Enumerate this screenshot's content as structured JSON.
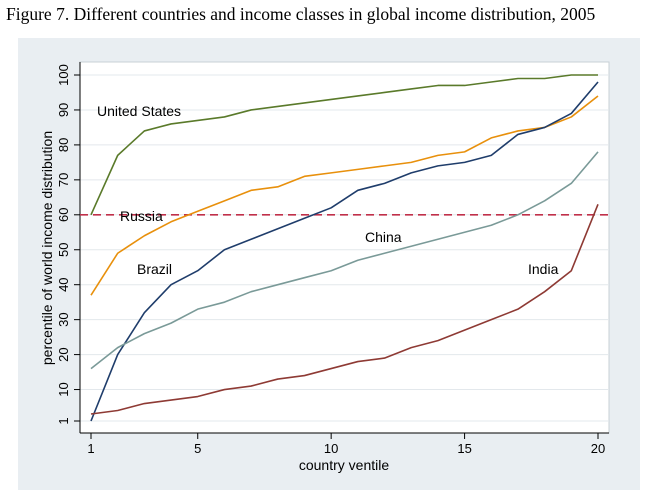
{
  "figure_title": "Figure 7. Different countries and income classes in global income distribution, 2005",
  "chart_data": {
    "type": "line",
    "title": "",
    "xlabel": "country ventile",
    "ylabel": "percentile of world income distribution",
    "xlim": [
      1,
      20
    ],
    "ylim": [
      1,
      100
    ],
    "x_ticks": [
      1,
      5,
      10,
      15,
      20
    ],
    "y_ticks": [
      1,
      10,
      20,
      30,
      40,
      50,
      60,
      70,
      80,
      90,
      100
    ],
    "grid": true,
    "legend": "none",
    "x": [
      1,
      2,
      3,
      4,
      5,
      6,
      7,
      8,
      9,
      10,
      11,
      12,
      13,
      14,
      15,
      16,
      17,
      18,
      19,
      20
    ],
    "reference_line": {
      "y": 60,
      "color": "#c0304a",
      "style": "dashed"
    },
    "series": [
      {
        "name": "United States",
        "color": "#5a7a2a",
        "values": [
          60,
          77,
          84,
          86,
          87,
          88,
          90,
          91,
          92,
          93,
          94,
          95,
          96,
          97,
          97,
          98,
          99,
          99,
          100,
          100
        ]
      },
      {
        "name": "Russia",
        "color": "#e8900c",
        "values": [
          37,
          49,
          54,
          58,
          61,
          64,
          67,
          68,
          71,
          72,
          73,
          74,
          75,
          77,
          78,
          82,
          84,
          85,
          88,
          94
        ]
      },
      {
        "name": "Brazil",
        "color": "#1f3d6b",
        "values": [
          1,
          20,
          32,
          40,
          44,
          50,
          53,
          56,
          59,
          62,
          67,
          69,
          72,
          74,
          75,
          77,
          83,
          85,
          89,
          98
        ]
      },
      {
        "name": "China",
        "color": "#7a9a98",
        "values": [
          16,
          22,
          26,
          29,
          33,
          35,
          38,
          40,
          42,
          44,
          47,
          49,
          51,
          53,
          55,
          57,
          60,
          64,
          69,
          78
        ]
      },
      {
        "name": "India",
        "color": "#8e3a34",
        "values": [
          3,
          4,
          6,
          7,
          8,
          10,
          11,
          13,
          14,
          16,
          18,
          19,
          22,
          24,
          27,
          30,
          33,
          38,
          44,
          63
        ]
      }
    ]
  }
}
